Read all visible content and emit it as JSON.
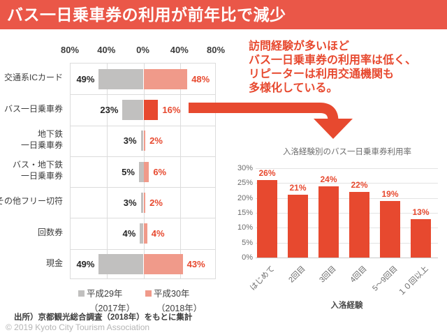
{
  "header": {
    "title": "バス一日乗車券の利用が前年比で減少"
  },
  "annotation": {
    "text": "訪問経験が多いほど\nバス一日乗車券の利用率は低く、\nリピーターは利用交通機関も\n多様化している。"
  },
  "source": "出所）京都観光総合調査（2018年）をもとに集計",
  "footer": "© 2019 Kyoto City Tourism Association",
  "colors": {
    "header_bg": "#ea5748",
    "accent_red": "#e7492f",
    "salmon": "#f09a8a",
    "bar_gray": "#c1c0bf",
    "grid": "#dcdcdc"
  },
  "chart_data": [
    {
      "type": "bar",
      "variant": "diverging-horizontal",
      "title": "",
      "categories": [
        "交通系ICカード",
        "バス一日乗車券",
        "地下鉄\n一日乗車券",
        "バス・地下鉄\n一日乗車券",
        "その他フリー切符",
        "回数券",
        "現金"
      ],
      "series": [
        {
          "name": "平成29年",
          "sub": "（2017年）",
          "values": [
            49,
            23,
            3,
            5,
            3,
            4,
            49
          ],
          "color": "#c1c0bf"
        },
        {
          "name": "平成30年",
          "sub": "（2018年）",
          "values": [
            48,
            16,
            2,
            6,
            2,
            4,
            43
          ],
          "color": "#f09a8a",
          "highlight_index": 1,
          "highlight_color": "#e7492f"
        }
      ],
      "axis_ticks": [
        "80%",
        "40%",
        "0%",
        "40%",
        "80%"
      ],
      "xlim": [
        -80,
        80
      ],
      "unit": "%",
      "grid": true,
      "legend_position": "bottom"
    },
    {
      "type": "bar",
      "title": "入洛経験別のバス一日乗車券利用率",
      "categories": [
        "はじめて",
        "2回目",
        "3回目",
        "4回目",
        "5～9回目",
        "１０回以上"
      ],
      "values": [
        26,
        21,
        24,
        22,
        19,
        13
      ],
      "value_labels": [
        "26%",
        "21%",
        "24%",
        "22%",
        "19%",
        "13%"
      ],
      "xlabel": "入洛経験",
      "ylabel": "",
      "ylim": [
        0,
        30
      ],
      "yticks": [
        "0%",
        "5%",
        "10%",
        "15%",
        "20%",
        "25%",
        "30%"
      ],
      "bar_color": "#e7492f",
      "grid": true
    }
  ]
}
